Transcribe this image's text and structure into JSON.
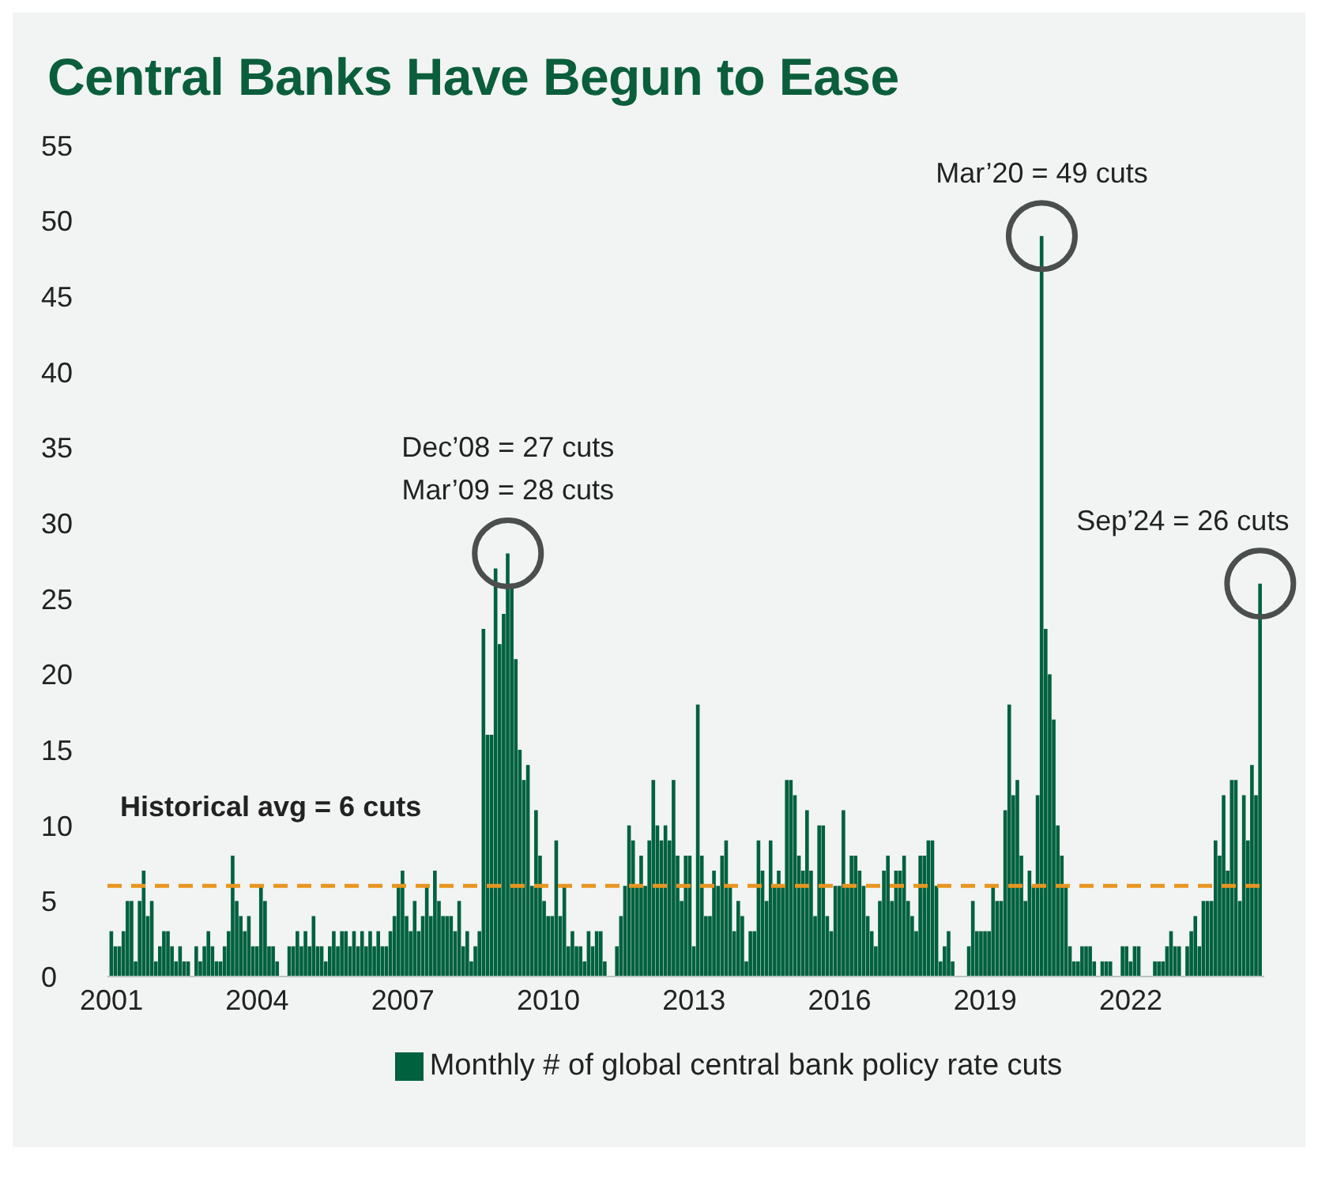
{
  "chart_data": {
    "type": "bar",
    "title": "Central Banks Have Begun to Ease",
    "x": [
      "2001-01",
      "2001-02",
      "2001-03",
      "2001-04",
      "2001-05",
      "2001-06",
      "2001-07",
      "2001-08",
      "2001-09",
      "2001-10",
      "2001-11",
      "2001-12",
      "2002-01",
      "2002-02",
      "2002-03",
      "2002-04",
      "2002-05",
      "2002-06",
      "2002-07",
      "2002-08",
      "2002-09",
      "2002-10",
      "2002-11",
      "2002-12",
      "2003-01",
      "2003-02",
      "2003-03",
      "2003-04",
      "2003-05",
      "2003-06",
      "2003-07",
      "2003-08",
      "2003-09",
      "2003-10",
      "2003-11",
      "2003-12",
      "2004-01",
      "2004-02",
      "2004-03",
      "2004-04",
      "2004-05",
      "2004-06",
      "2004-07",
      "2004-08",
      "2004-09",
      "2004-10",
      "2004-11",
      "2004-12",
      "2005-01",
      "2005-02",
      "2005-03",
      "2005-04",
      "2005-05",
      "2005-06",
      "2005-07",
      "2005-08",
      "2005-09",
      "2005-10",
      "2005-11",
      "2005-12",
      "2006-01",
      "2006-02",
      "2006-03",
      "2006-04",
      "2006-05",
      "2006-06",
      "2006-07",
      "2006-08",
      "2006-09",
      "2006-10",
      "2006-11",
      "2006-12",
      "2007-01",
      "2007-02",
      "2007-03",
      "2007-04",
      "2007-05",
      "2007-06",
      "2007-07",
      "2007-08",
      "2007-09",
      "2007-10",
      "2007-11",
      "2007-12",
      "2008-01",
      "2008-02",
      "2008-03",
      "2008-04",
      "2008-05",
      "2008-06",
      "2008-07",
      "2008-08",
      "2008-09",
      "2008-10",
      "2008-11",
      "2008-12",
      "2009-01",
      "2009-02",
      "2009-03",
      "2009-04",
      "2009-05",
      "2009-06",
      "2009-07",
      "2009-08",
      "2009-09",
      "2009-10",
      "2009-11",
      "2009-12",
      "2010-01",
      "2010-02",
      "2010-03",
      "2010-04",
      "2010-05",
      "2010-06",
      "2010-07",
      "2010-08",
      "2010-09",
      "2010-10",
      "2010-11",
      "2010-12",
      "2011-01",
      "2011-02",
      "2011-03",
      "2011-04",
      "2011-05",
      "2011-06",
      "2011-07",
      "2011-08",
      "2011-09",
      "2011-10",
      "2011-11",
      "2011-12",
      "2012-01",
      "2012-02",
      "2012-03",
      "2012-04",
      "2012-05",
      "2012-06",
      "2012-07",
      "2012-08",
      "2012-09",
      "2012-10",
      "2012-11",
      "2012-12",
      "2013-01",
      "2013-02",
      "2013-03",
      "2013-04",
      "2013-05",
      "2013-06",
      "2013-07",
      "2013-08",
      "2013-09",
      "2013-10",
      "2013-11",
      "2013-12",
      "2014-01",
      "2014-02",
      "2014-03",
      "2014-04",
      "2014-05",
      "2014-06",
      "2014-07",
      "2014-08",
      "2014-09",
      "2014-10",
      "2014-11",
      "2014-12",
      "2015-01",
      "2015-02",
      "2015-03",
      "2015-04",
      "2015-05",
      "2015-06",
      "2015-07",
      "2015-08",
      "2015-09",
      "2015-10",
      "2015-11",
      "2015-12",
      "2016-01",
      "2016-02",
      "2016-03",
      "2016-04",
      "2016-05",
      "2016-06",
      "2016-07",
      "2016-08",
      "2016-09",
      "2016-10",
      "2016-11",
      "2016-12",
      "2017-01",
      "2017-02",
      "2017-03",
      "2017-04",
      "2017-05",
      "2017-06",
      "2017-07",
      "2017-08",
      "2017-09",
      "2017-10",
      "2017-11",
      "2017-12",
      "2018-01",
      "2018-02",
      "2018-03",
      "2018-04",
      "2018-05",
      "2018-06",
      "2018-07",
      "2018-08",
      "2018-09",
      "2018-10",
      "2018-11",
      "2018-12",
      "2019-01",
      "2019-02",
      "2019-03",
      "2019-04",
      "2019-05",
      "2019-06",
      "2019-07",
      "2019-08",
      "2019-09",
      "2019-10",
      "2019-11",
      "2019-12",
      "2020-01",
      "2020-02",
      "2020-03",
      "2020-04",
      "2020-05",
      "2020-06",
      "2020-07",
      "2020-08",
      "2020-09",
      "2020-10",
      "2020-11",
      "2020-12",
      "2021-01",
      "2021-02",
      "2021-03",
      "2021-04",
      "2021-05",
      "2021-06",
      "2021-07",
      "2021-08",
      "2021-09",
      "2021-10",
      "2021-11",
      "2021-12",
      "2022-01",
      "2022-02",
      "2022-03",
      "2022-04",
      "2022-05",
      "2022-06",
      "2022-07",
      "2022-08",
      "2022-09",
      "2022-10",
      "2022-11",
      "2022-12",
      "2023-01",
      "2023-02",
      "2023-03",
      "2023-04",
      "2023-05",
      "2023-06",
      "2023-07",
      "2023-08",
      "2023-09",
      "2023-10",
      "2023-11",
      "2023-12",
      "2024-01",
      "2024-02",
      "2024-03",
      "2024-04",
      "2024-05",
      "2024-06",
      "2024-07",
      "2024-08",
      "2024-09"
    ],
    "series": [
      {
        "name": "Monthly # of global central bank policy rate cuts",
        "color": "#00613f",
        "values": [
          3,
          2,
          2,
          3,
          5,
          5,
          1,
          5,
          7,
          4,
          5,
          1,
          2,
          3,
          3,
          2,
          1,
          2,
          1,
          1,
          0,
          2,
          1,
          2,
          3,
          2,
          1,
          1,
          2,
          3,
          8,
          5,
          4,
          3,
          4,
          2,
          2,
          6,
          5,
          2,
          2,
          1,
          0,
          0,
          2,
          2,
          3,
          2,
          3,
          2,
          4,
          2,
          2,
          1,
          2,
          3,
          2,
          3,
          3,
          2,
          3,
          2,
          3,
          2,
          3,
          2,
          3,
          2,
          2,
          3,
          4,
          6,
          7,
          4,
          3,
          5,
          3,
          4,
          6,
          4,
          7,
          5,
          4,
          4,
          4,
          3,
          5,
          2,
          3,
          1,
          2,
          3,
          23,
          16,
          16,
          27,
          22,
          24,
          28,
          26,
          21,
          15,
          13,
          14,
          6,
          11,
          8,
          5,
          4,
          4,
          9,
          4,
          6,
          2,
          3,
          2,
          2,
          1,
          3,
          2,
          3,
          3,
          1,
          0,
          0,
          2,
          4,
          6,
          10,
          9,
          6,
          8,
          6,
          9,
          13,
          10,
          9,
          10,
          9,
          13,
          8,
          5,
          8,
          8,
          2,
          18,
          8,
          4,
          4,
          7,
          6,
          8,
          9,
          6,
          3,
          5,
          4,
          1,
          3,
          3,
          9,
          7,
          5,
          9,
          6,
          7,
          6,
          13,
          13,
          12,
          8,
          7,
          11,
          7,
          4,
          10,
          10,
          4,
          3,
          6,
          6,
          11,
          6,
          8,
          8,
          7,
          6,
          4,
          3,
          2,
          5,
          7,
          8,
          5,
          7,
          7,
          8,
          5,
          4,
          3,
          8,
          8,
          9,
          9,
          6,
          1,
          2,
          3,
          1,
          0,
          0,
          0,
          2,
          5,
          3,
          3,
          3,
          3,
          6,
          5,
          5,
          11,
          18,
          12,
          13,
          8,
          5,
          7,
          6,
          12,
          49,
          23,
          20,
          17,
          10,
          8,
          6,
          2,
          1,
          1,
          2,
          2,
          2,
          1,
          0,
          1,
          1,
          1,
          0,
          0,
          2,
          2,
          1,
          2,
          2,
          0,
          0,
          0,
          1,
          1,
          1,
          2,
          3,
          2,
          2,
          0,
          2,
          3,
          4,
          2,
          5,
          5,
          5,
          9,
          8,
          12,
          7,
          13,
          13,
          5,
          12,
          9,
          14,
          12,
          26
        ]
      }
    ],
    "xlim": [
      "2000-12",
      "2024-10"
    ],
    "xticks": [
      "2001",
      "2004",
      "2007",
      "2010",
      "2013",
      "2016",
      "2019",
      "2022"
    ],
    "ylim": [
      0,
      55
    ],
    "yticks": [
      0,
      5,
      10,
      15,
      20,
      25,
      30,
      35,
      40,
      45,
      50,
      55
    ],
    "ref_lines": [
      {
        "axis": "y",
        "value": 6,
        "label": "Historical avg = 6 cuts",
        "color": "#e8951f",
        "line_style": "dashed"
      }
    ],
    "annotations": [
      "Dec’08 = 27 cuts",
      {
        "text": "Mar’09 = 28 cuts",
        "x": "2009-03",
        "y": 28
      },
      {
        "text": "Mar’20 = 49 cuts",
        "x": "2020-03",
        "y": 49
      },
      {
        "text": "Sep’24 = 26 cuts",
        "x": "2024-09",
        "y": 26
      }
    ],
    "legend": "bottom"
  }
}
